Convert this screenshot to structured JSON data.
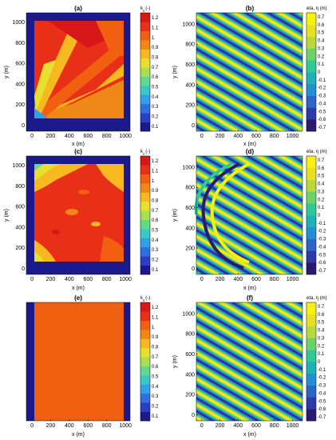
{
  "chart_data": [
    {
      "panel": "(a)",
      "type": "heatmap",
      "xlabel": "x (m)",
      "ylabel": "y (m)",
      "xticks": [
        0,
        200,
        400,
        600,
        800,
        1000
      ],
      "yticks": [
        0,
        200,
        400,
        600,
        800,
        1000
      ],
      "xlim": [
        -60,
        1050
      ],
      "ylim": [
        -60,
        1090
      ],
      "colorbar": {
        "title": "k",
        "subscript": "s",
        "unit": "(-)",
        "ticks": [
          "1.2",
          "1.1",
          "1",
          "0.9",
          "0.8",
          "0.7",
          "0.6",
          "0.5",
          "0.4",
          "0.3",
          "0.2",
          "0.1"
        ],
        "range": [
          0.05,
          1.25
        ]
      }
    },
    {
      "panel": "(b)",
      "type": "heatmap",
      "xlabel": "x (m)",
      "ylabel": "y (m)",
      "xticks": [
        0,
        200,
        400,
        600,
        800,
        1000
      ],
      "yticks": [
        0,
        200,
        400,
        600,
        800,
        1000
      ],
      "xlim": [
        -60,
        1110
      ],
      "ylim": [
        -60,
        1110
      ],
      "colorbar": {
        "title": "eta, η (m)",
        "ticks": [
          "0.7",
          "0.6",
          "0.5",
          "0.4",
          "0.3",
          "0.2",
          "0.1",
          "0",
          "-0.1",
          "-0.2",
          "-0.3",
          "-0.4",
          "-0.5",
          "-0.6",
          "-0.7"
        ],
        "range": [
          -0.75,
          0.75
        ]
      }
    },
    {
      "panel": "(c)",
      "type": "heatmap",
      "xlabel": "x (m)",
      "ylabel": "y (m)",
      "xticks": [
        0,
        200,
        400,
        600,
        800,
        1000
      ],
      "yticks": [
        0,
        200,
        400,
        600,
        800,
        1000
      ],
      "xlim": [
        -60,
        1050
      ],
      "ylim": [
        -60,
        1090
      ],
      "colorbar": {
        "title": "k",
        "subscript": "s",
        "unit": "(-)",
        "ticks": [
          "1.2",
          "1.1",
          "1",
          "0.9",
          "0.8",
          "0.7",
          "0.6",
          "0.5",
          "0.4",
          "0.3",
          "0.2",
          "0.1"
        ],
        "range": [
          0.05,
          1.25
        ]
      }
    },
    {
      "panel": "(d)",
      "type": "heatmap",
      "xlabel": "x (m)",
      "ylabel": "y (m)",
      "xticks": [
        0,
        200,
        400,
        600,
        800,
        1000
      ],
      "yticks": [
        0,
        200,
        400,
        600,
        800,
        1000
      ],
      "xlim": [
        -60,
        1110
      ],
      "ylim": [
        -60,
        1110
      ],
      "colorbar": {
        "title": "eta, η (m)",
        "ticks": [
          "0.7",
          "0.6",
          "0.5",
          "0.4",
          "0.3",
          "0.2",
          "0.1",
          "0",
          "-0.1",
          "-0.2",
          "-0.3",
          "-0.4",
          "-0.5",
          "-0.6",
          "-0.7"
        ],
        "range": [
          -0.75,
          0.75
        ]
      }
    },
    {
      "panel": "(e)",
      "type": "heatmap",
      "xlabel": "x (m)",
      "ylabel": "y (m)",
      "xticks": [
        0,
        200,
        400,
        600,
        800,
        1000
      ],
      "yticks": [
        0,
        200,
        400,
        600,
        800,
        1000
      ],
      "xlim": [
        -60,
        1050
      ],
      "ylim": [
        -60,
        1090
      ],
      "colorbar": {
        "title": "k",
        "subscript": "s",
        "unit": "(-)",
        "ticks": [
          "1.2",
          "1.1",
          "1",
          "0.9",
          "0.8",
          "0.7",
          "0.6",
          "0.5",
          "0.4",
          "0.3",
          "0.2",
          "0.1"
        ],
        "range": [
          0.05,
          1.25
        ]
      }
    },
    {
      "panel": "(f)",
      "type": "heatmap",
      "xlabel": "x (m)",
      "ylabel": "y (m)",
      "xticks": [
        0,
        200,
        400,
        600,
        800,
        1000
      ],
      "yticks": [
        0,
        200,
        400,
        600,
        800,
        1000
      ],
      "xlim": [
        -60,
        1110
      ],
      "ylim": [
        -60,
        1110
      ],
      "colorbar": {
        "title": "eta, η (m)",
        "ticks": [
          "0.7",
          "0.6",
          "0.5",
          "0.4",
          "0.3",
          "0.2",
          "0.1",
          "0",
          "-0.1",
          "-0.2",
          "-0.3",
          "-0.4",
          "-0.5",
          "-0.6",
          "-0.7"
        ],
        "range": [
          -0.75,
          0.75
        ]
      }
    }
  ],
  "palettes": {
    "ks": [
      "#1a1a8c",
      "#2a3fc4",
      "#2f6fe0",
      "#30a0e8",
      "#38c8c8",
      "#60d890",
      "#a8e050",
      "#e8e030",
      "#f8b820",
      "#f08818",
      "#f06010",
      "#e83018",
      "#d81818"
    ],
    "eta": [
      "#2a1a70",
      "#2e3aa8",
      "#2c66c8",
      "#2490d0",
      "#20b0b8",
      "#30c898",
      "#6ad268",
      "#b8d840",
      "#e8e020",
      "#f8f010"
    ]
  }
}
